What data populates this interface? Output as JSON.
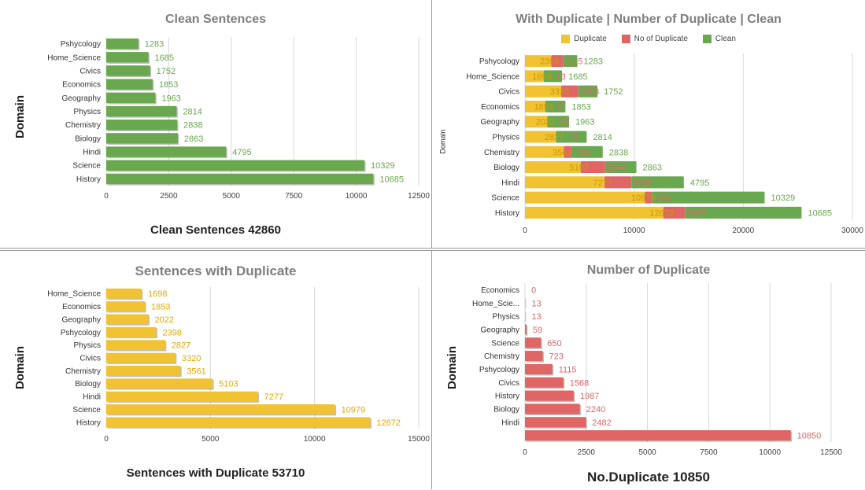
{
  "colors": {
    "clean": "#6aa84f",
    "duplicate": "#f1c232",
    "no_duplicate": "#e06666",
    "grid": "#d9d9d9",
    "tick": "#444444"
  },
  "panels": {
    "clean": {
      "title": "Clean Sentences",
      "ylabel": "Domain",
      "caption": "Clean Sentences 42860"
    },
    "combo": {
      "title": "With Duplicate | Number of Duplicate | Clean",
      "ylabel": "Domain",
      "legend": {
        "duplicate": "Duplicate",
        "no_duplicate": "No of Duplicate",
        "clean": "Clean"
      }
    },
    "dup": {
      "title": "Sentences with Duplicate",
      "ylabel": "Domain",
      "caption": "Sentences with Duplicate 53710"
    },
    "nodup": {
      "title": "Number of Duplicate",
      "ylabel": "Domain",
      "caption": "No.Duplicate 10850"
    }
  },
  "chart_data": [
    {
      "type": "bar",
      "orientation": "horizontal",
      "title": "Clean Sentences",
      "ylabel": "Domain",
      "categories": [
        "Pshycology",
        "Home_Science",
        "Civics",
        "Economics",
        "Geography",
        "Physics",
        "Chemistry",
        "Biology",
        "Hindi",
        "Science",
        "History"
      ],
      "values": [
        1283,
        1685,
        1752,
        1853,
        1963,
        2814,
        2838,
        2863,
        4795,
        10329,
        10685
      ],
      "xlim": [
        0,
        12500
      ],
      "xticks": [
        "0",
        "2500",
        "5000",
        "7500",
        "10000",
        "12500"
      ],
      "grid": true
    },
    {
      "type": "bar",
      "orientation": "horizontal",
      "stacked": true,
      "title": "With Duplicate | Number of Duplicate | Clean",
      "ylabel": "Domain",
      "categories": [
        "Pshycology",
        "Home_Science",
        "Civics",
        "Economics",
        "Geography",
        "Physics",
        "Chemistry",
        "Biology",
        "Hindi",
        "Science",
        "History"
      ],
      "series": [
        {
          "name": "Duplicate",
          "values": [
            2398,
            1698,
            3320,
            1853,
            2022,
            2827,
            3561,
            5103,
            7277,
            10979,
            12672
          ]
        },
        {
          "name": "No of Duplicate",
          "values": [
            1115,
            13,
            1568,
            0,
            59,
            13,
            723,
            2240,
            2482,
            650,
            1987
          ]
        },
        {
          "name": "Clean",
          "values": [
            1283,
            1685,
            1752,
            1853,
            1963,
            2814,
            2838,
            2863,
            4795,
            10329,
            10685
          ]
        }
      ],
      "xlim": [
        0,
        30000
      ],
      "xticks": [
        "0",
        "10000",
        "20000",
        "30000"
      ],
      "grid": true,
      "legend": "top-center"
    },
    {
      "type": "bar",
      "orientation": "horizontal",
      "title": "Sentences with Duplicate",
      "ylabel": "Domain",
      "categories": [
        "Home_Science",
        "Economics",
        "Geography",
        "Pshycology",
        "Physics",
        "Civics",
        "Chemistry",
        "Biology",
        "Hindi",
        "Science",
        "History"
      ],
      "values": [
        1698,
        1853,
        2022,
        2398,
        2827,
        3320,
        3561,
        5103,
        7277,
        10979,
        12672
      ],
      "xlim": [
        0,
        15000
      ],
      "xticks": [
        "0",
        "5000",
        "10000",
        "15000"
      ],
      "grid": true
    },
    {
      "type": "bar",
      "orientation": "horizontal",
      "title": "Number of Duplicate",
      "ylabel": "Domain",
      "categories": [
        "Economics",
        "Home_Scie...",
        "Physics",
        "Geography",
        "Science",
        "Chemistry",
        "Pshycology",
        "Civics",
        "History",
        "Biology",
        "Hindi",
        ""
      ],
      "values": [
        0,
        13,
        13,
        59,
        650,
        723,
        1115,
        1568,
        1987,
        2240,
        2482,
        10850
      ],
      "xlim": [
        0,
        12500
      ],
      "xticks": [
        "0",
        "2500",
        "5000",
        "7500",
        "10000",
        "12500"
      ],
      "grid": true
    }
  ]
}
